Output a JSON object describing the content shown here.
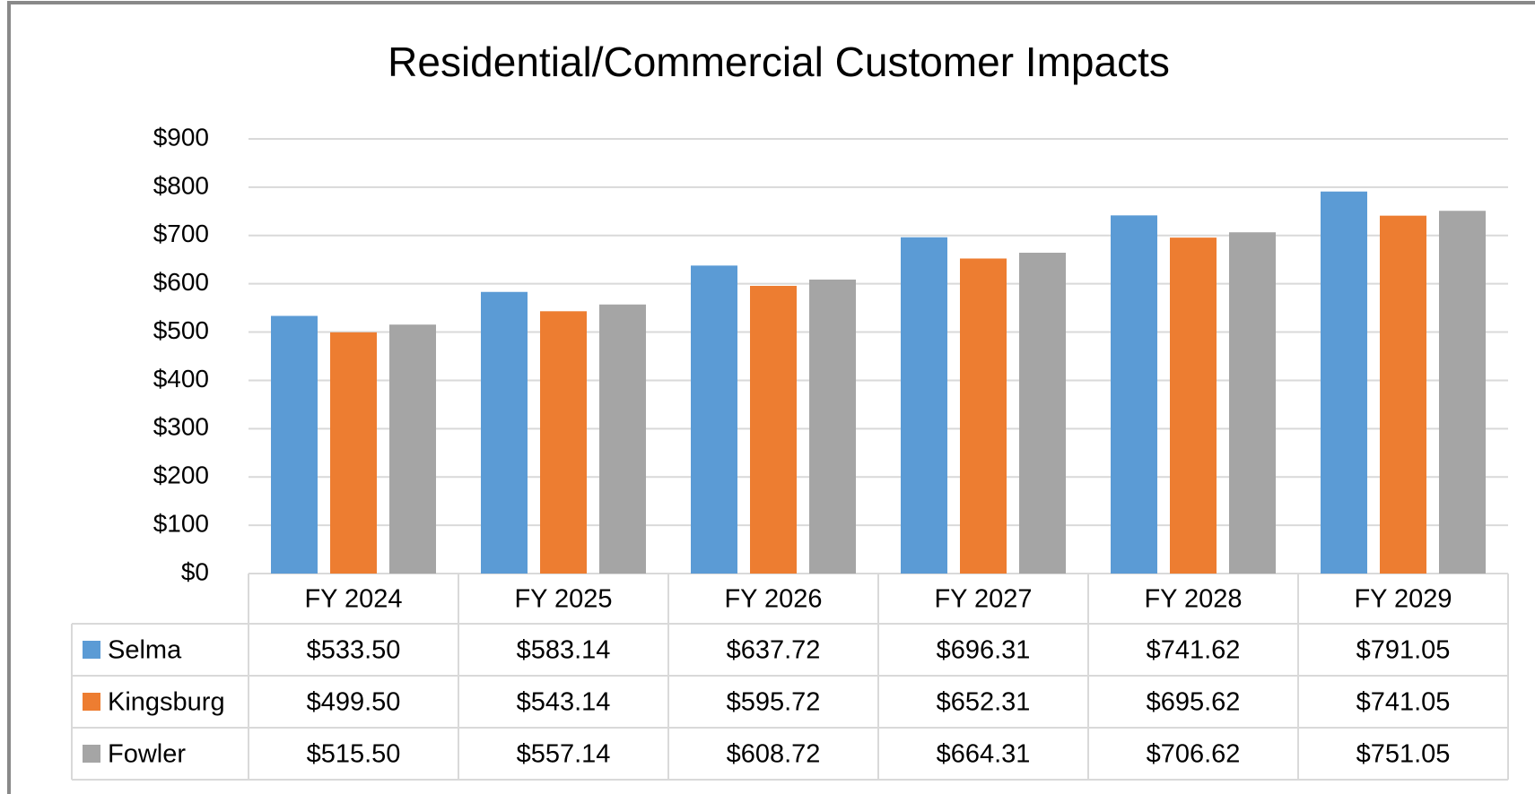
{
  "chart_data": {
    "type": "bar",
    "title": "Residential/Commercial Customer Impacts",
    "categories": [
      "FY 2024",
      "FY 2025",
      "FY 2026",
      "FY 2027",
      "FY 2028",
      "FY 2029"
    ],
    "series": [
      {
        "name": "Selma",
        "color": "#5b9bd5",
        "values": [
          533.5,
          583.14,
          637.72,
          696.31,
          741.62,
          791.05
        ],
        "value_labels": [
          "$533.50",
          "$583.14",
          "$637.72",
          "$696.31",
          "$741.62",
          "$791.05"
        ]
      },
      {
        "name": "Kingsburg",
        "color": "#ed7d31",
        "values": [
          499.5,
          543.14,
          595.72,
          652.31,
          695.62,
          741.05
        ],
        "value_labels": [
          "$499.50",
          "$543.14",
          "$595.72",
          "$652.31",
          "$695.62",
          "$741.05"
        ]
      },
      {
        "name": "Fowler",
        "color": "#a5a5a5",
        "values": [
          515.5,
          557.14,
          608.72,
          664.31,
          706.62,
          751.05
        ],
        "value_labels": [
          "$515.50",
          "$557.14",
          "$608.72",
          "$664.31",
          "$706.62",
          "$751.05"
        ]
      }
    ],
    "ylim": [
      0,
      900
    ],
    "yticks": [
      {
        "value": 0,
        "label": "$0"
      },
      {
        "value": 100,
        "label": "$100"
      },
      {
        "value": 200,
        "label": "$200"
      },
      {
        "value": 300,
        "label": "$300"
      },
      {
        "value": 400,
        "label": "$400"
      },
      {
        "value": 500,
        "label": "$500"
      },
      {
        "value": 600,
        "label": "$600"
      },
      {
        "value": 700,
        "label": "$700"
      },
      {
        "value": 800,
        "label": "$800"
      },
      {
        "value": 900,
        "label": "$900"
      }
    ],
    "grid": true
  }
}
